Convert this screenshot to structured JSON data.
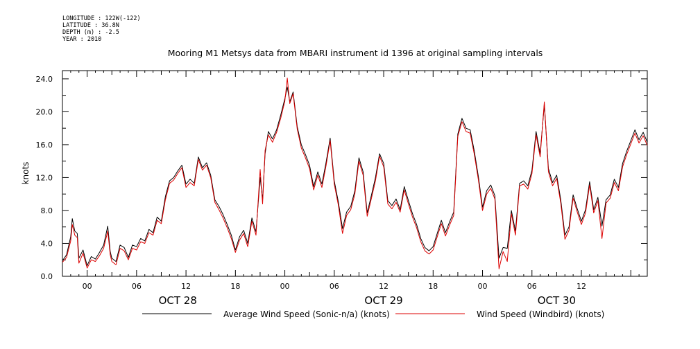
{
  "meta": {
    "longitude": "LONGITUDE : 122W(-122)",
    "latitude": "LATITUDE : 36.8N",
    "depth": "DEPTH (m) : -2.5",
    "year": "YEAR : 2010"
  },
  "chart_data": {
    "type": "line",
    "title": "Mooring M1 Metsys data from MBARI instrument id 1396 at original sampling intervals",
    "ylabel": "knots",
    "xlabel": "",
    "ylim": [
      0,
      25
    ],
    "yticks": [
      "0.0",
      "4.0",
      "8.0",
      "12.0",
      "16.0",
      "20.0",
      "24.0"
    ],
    "xlim_hours": [
      -3,
      68
    ],
    "xticks": [
      {
        "h": 0,
        "label": "00"
      },
      {
        "h": 6,
        "label": "06"
      },
      {
        "h": 12,
        "label": "12"
      },
      {
        "h": 18,
        "label": "18"
      },
      {
        "h": 24,
        "label": "00"
      },
      {
        "h": 30,
        "label": "06"
      },
      {
        "h": 36,
        "label": "12"
      },
      {
        "h": 42,
        "label": "18"
      },
      {
        "h": 48,
        "label": "00"
      },
      {
        "h": 54,
        "label": "06"
      },
      {
        "h": 60,
        "label": "12"
      }
    ],
    "day_labels": [
      {
        "h": 11,
        "label": "OCT 28"
      },
      {
        "h": 36,
        "label": "OCT 29"
      },
      {
        "h": 57,
        "label": "OCT 30"
      }
    ],
    "grid": false,
    "legend_position": "bottom",
    "series": [
      {
        "name": "Average Wind Speed (Sonic-n/a) (knots)",
        "color": "#000000",
        "points": [
          [
            -3,
            1.9
          ],
          [
            -2.5,
            2.6
          ],
          [
            -2,
            4.8
          ],
          [
            -1.8,
            7.0
          ],
          [
            -1.5,
            5.5
          ],
          [
            -1.2,
            5.2
          ],
          [
            -1,
            2.2
          ],
          [
            -0.5,
            3.2
          ],
          [
            0,
            1.3
          ],
          [
            0.5,
            2.4
          ],
          [
            1,
            2.1
          ],
          [
            1.5,
            2.9
          ],
          [
            2,
            3.8
          ],
          [
            2.5,
            6.1
          ],
          [
            2.8,
            3.0
          ],
          [
            3,
            2.2
          ],
          [
            3.5,
            1.8
          ],
          [
            4,
            3.8
          ],
          [
            4.5,
            3.5
          ],
          [
            5,
            2.3
          ],
          [
            5.5,
            3.8
          ],
          [
            6,
            3.6
          ],
          [
            6.5,
            4.6
          ],
          [
            7,
            4.3
          ],
          [
            7.5,
            5.7
          ],
          [
            8,
            5.3
          ],
          [
            8.5,
            7.2
          ],
          [
            9,
            6.7
          ],
          [
            9.5,
            9.7
          ],
          [
            10,
            11.6
          ],
          [
            10.5,
            12.0
          ],
          [
            11,
            12.8
          ],
          [
            11.5,
            13.5
          ],
          [
            12,
            11.2
          ],
          [
            12.5,
            11.8
          ],
          [
            13,
            11.3
          ],
          [
            13.5,
            14.5
          ],
          [
            14,
            13.2
          ],
          [
            14.5,
            13.8
          ],
          [
            15,
            12.3
          ],
          [
            15.5,
            9.3
          ],
          [
            16,
            8.5
          ],
          [
            16.5,
            7.5
          ],
          [
            17,
            6.3
          ],
          [
            17.5,
            5.0
          ],
          [
            18,
            3.2
          ],
          [
            18.5,
            4.8
          ],
          [
            19,
            5.6
          ],
          [
            19.5,
            4.0
          ],
          [
            20,
            7.1
          ],
          [
            20.5,
            5.4
          ],
          [
            21,
            12.0
          ],
          [
            21.3,
            9.3
          ],
          [
            21.6,
            14.9
          ],
          [
            22,
            17.6
          ],
          [
            22.5,
            16.7
          ],
          [
            23,
            17.8
          ],
          [
            23.5,
            19.6
          ],
          [
            24,
            21.6
          ],
          [
            24.3,
            23.0
          ],
          [
            24.6,
            21.2
          ],
          [
            25,
            22.4
          ],
          [
            25.5,
            18.2
          ],
          [
            26,
            16.0
          ],
          [
            26.5,
            14.8
          ],
          [
            27,
            13.5
          ],
          [
            27.5,
            10.9
          ],
          [
            28,
            12.7
          ],
          [
            28.5,
            11.2
          ],
          [
            29,
            13.8
          ],
          [
            29.5,
            16.8
          ],
          [
            30,
            11.6
          ],
          [
            30.5,
            9.0
          ],
          [
            31,
            5.8
          ],
          [
            31.5,
            7.8
          ],
          [
            32,
            8.5
          ],
          [
            32.5,
            10.4
          ],
          [
            33,
            14.4
          ],
          [
            33.5,
            12.7
          ],
          [
            34,
            7.7
          ],
          [
            34.5,
            9.8
          ],
          [
            35,
            12.0
          ],
          [
            35.5,
            14.9
          ],
          [
            36,
            13.7
          ],
          [
            36.5,
            9.2
          ],
          [
            37,
            8.6
          ],
          [
            37.5,
            9.4
          ],
          [
            38,
            8.1
          ],
          [
            38.5,
            10.9
          ],
          [
            39,
            9.2
          ],
          [
            39.5,
            7.6
          ],
          [
            40,
            6.3
          ],
          [
            40.5,
            4.6
          ],
          [
            41,
            3.5
          ],
          [
            41.5,
            3.1
          ],
          [
            42,
            3.6
          ],
          [
            42.5,
            5.2
          ],
          [
            43,
            6.8
          ],
          [
            43.5,
            5.3
          ],
          [
            44,
            6.6
          ],
          [
            44.5,
            7.8
          ],
          [
            45,
            17.3
          ],
          [
            45.5,
            19.2
          ],
          [
            46,
            18.0
          ],
          [
            46.5,
            17.8
          ],
          [
            47,
            15.2
          ],
          [
            47.5,
            12.1
          ],
          [
            48,
            8.4
          ],
          [
            48.5,
            10.4
          ],
          [
            49,
            11.1
          ],
          [
            49.5,
            9.8
          ],
          [
            50,
            2.2
          ],
          [
            50.5,
            3.5
          ],
          [
            51,
            3.4
          ],
          [
            51.5,
            8.0
          ],
          [
            52,
            5.5
          ],
          [
            52.5,
            11.3
          ],
          [
            53,
            11.6
          ],
          [
            53.5,
            11.0
          ],
          [
            54,
            12.9
          ],
          [
            54.5,
            17.6
          ],
          [
            55,
            14.9
          ],
          [
            55.5,
            20.9
          ],
          [
            56,
            13.1
          ],
          [
            56.5,
            11.4
          ],
          [
            57,
            12.3
          ],
          [
            57.5,
            9.3
          ],
          [
            58,
            5.0
          ],
          [
            58.5,
            6.0
          ],
          [
            59,
            9.9
          ],
          [
            59.5,
            8.2
          ],
          [
            60,
            6.7
          ],
          [
            60.5,
            8.1
          ],
          [
            61,
            11.5
          ],
          [
            61.5,
            8.1
          ],
          [
            62,
            9.6
          ],
          [
            62.5,
            6.1
          ],
          [
            63,
            9.3
          ],
          [
            63.5,
            9.9
          ],
          [
            64,
            11.8
          ],
          [
            64.5,
            10.8
          ],
          [
            65,
            13.7
          ],
          [
            65.5,
            15.2
          ],
          [
            66,
            16.5
          ],
          [
            66.5,
            17.8
          ],
          [
            67,
            16.6
          ],
          [
            67.5,
            17.5
          ],
          [
            68,
            16.3
          ]
        ]
      },
      {
        "name": "Wind Speed (Windbird) (knots)",
        "color": "#dd0000",
        "points": [
          [
            -3,
            1.7
          ],
          [
            -2.5,
            2.3
          ],
          [
            -2,
            4.3
          ],
          [
            -1.8,
            6.3
          ],
          [
            -1.5,
            5.0
          ],
          [
            -1.2,
            4.7
          ],
          [
            -1,
            1.6
          ],
          [
            -0.5,
            2.8
          ],
          [
            0,
            1.0
          ],
          [
            0.5,
            2.0
          ],
          [
            1,
            1.8
          ],
          [
            1.5,
            2.5
          ],
          [
            2,
            3.4
          ],
          [
            2.5,
            5.5
          ],
          [
            2.8,
            2.6
          ],
          [
            3,
            1.8
          ],
          [
            3.5,
            1.4
          ],
          [
            4,
            3.4
          ],
          [
            4.5,
            3.1
          ],
          [
            5,
            2.0
          ],
          [
            5.5,
            3.4
          ],
          [
            6,
            3.2
          ],
          [
            6.5,
            4.2
          ],
          [
            7,
            4.0
          ],
          [
            7.5,
            5.3
          ],
          [
            8,
            5.0
          ],
          [
            8.5,
            6.8
          ],
          [
            9,
            6.4
          ],
          [
            9.5,
            9.3
          ],
          [
            10,
            11.3
          ],
          [
            10.5,
            11.7
          ],
          [
            11,
            12.5
          ],
          [
            11.5,
            13.2
          ],
          [
            12,
            10.8
          ],
          [
            12.5,
            11.4
          ],
          [
            13,
            11.0
          ],
          [
            13.5,
            14.2
          ],
          [
            14,
            12.9
          ],
          [
            14.5,
            13.5
          ],
          [
            15,
            12.0
          ],
          [
            15.5,
            9.0
          ],
          [
            16,
            8.1
          ],
          [
            16.5,
            7.1
          ],
          [
            17,
            5.9
          ],
          [
            17.5,
            4.6
          ],
          [
            18,
            2.9
          ],
          [
            18.5,
            4.4
          ],
          [
            19,
            5.2
          ],
          [
            19.5,
            3.6
          ],
          [
            20,
            6.7
          ],
          [
            20.5,
            5.0
          ],
          [
            21,
            13.0
          ],
          [
            21.3,
            8.8
          ],
          [
            21.6,
            15.3
          ],
          [
            22,
            17.2
          ],
          [
            22.5,
            16.3
          ],
          [
            23,
            17.5
          ],
          [
            23.5,
            19.2
          ],
          [
            24,
            21.3
          ],
          [
            24.3,
            24.1
          ],
          [
            24.6,
            21.0
          ],
          [
            25,
            22.2
          ],
          [
            25.5,
            17.9
          ],
          [
            26,
            15.6
          ],
          [
            26.5,
            14.4
          ],
          [
            27,
            13.1
          ],
          [
            27.5,
            10.5
          ],
          [
            28,
            12.3
          ],
          [
            28.5,
            10.8
          ],
          [
            29,
            13.4
          ],
          [
            29.5,
            16.5
          ],
          [
            30,
            11.2
          ],
          [
            30.5,
            8.6
          ],
          [
            31,
            5.2
          ],
          [
            31.5,
            7.4
          ],
          [
            32,
            8.1
          ],
          [
            32.5,
            10.0
          ],
          [
            33,
            14.0
          ],
          [
            33.5,
            12.3
          ],
          [
            34,
            7.3
          ],
          [
            34.5,
            9.4
          ],
          [
            35,
            11.6
          ],
          [
            35.5,
            14.6
          ],
          [
            36,
            13.3
          ],
          [
            36.5,
            8.8
          ],
          [
            37,
            8.2
          ],
          [
            37.5,
            9.0
          ],
          [
            38,
            7.8
          ],
          [
            38.5,
            10.5
          ],
          [
            39,
            8.8
          ],
          [
            39.5,
            7.2
          ],
          [
            40,
            5.9
          ],
          [
            40.5,
            4.2
          ],
          [
            41,
            3.1
          ],
          [
            41.5,
            2.7
          ],
          [
            42,
            3.2
          ],
          [
            42.5,
            4.8
          ],
          [
            43,
            6.4
          ],
          [
            43.5,
            4.9
          ],
          [
            44,
            6.2
          ],
          [
            44.5,
            7.4
          ],
          [
            45,
            17.0
          ],
          [
            45.5,
            18.8
          ],
          [
            46,
            17.6
          ],
          [
            46.5,
            17.4
          ],
          [
            47,
            14.8
          ],
          [
            47.5,
            11.7
          ],
          [
            48,
            8.0
          ],
          [
            48.5,
            10.0
          ],
          [
            49,
            10.7
          ],
          [
            49.5,
            9.4
          ],
          [
            50,
            0.9
          ],
          [
            50.5,
            3.0
          ],
          [
            51,
            1.8
          ],
          [
            51.5,
            7.6
          ],
          [
            52,
            5.0
          ],
          [
            52.5,
            11.0
          ],
          [
            53,
            11.2
          ],
          [
            53.5,
            10.6
          ],
          [
            54,
            12.5
          ],
          [
            54.5,
            17.2
          ],
          [
            55,
            14.5
          ],
          [
            55.5,
            21.2
          ],
          [
            56,
            12.7
          ],
          [
            56.5,
            11.0
          ],
          [
            57,
            11.9
          ],
          [
            57.5,
            8.9
          ],
          [
            58,
            4.5
          ],
          [
            58.5,
            5.6
          ],
          [
            59,
            9.5
          ],
          [
            59.5,
            7.8
          ],
          [
            60,
            6.3
          ],
          [
            60.5,
            7.7
          ],
          [
            61,
            11.1
          ],
          [
            61.5,
            7.7
          ],
          [
            62,
            9.2
          ],
          [
            62.5,
            4.6
          ],
          [
            63,
            8.9
          ],
          [
            63.5,
            9.5
          ],
          [
            64,
            11.4
          ],
          [
            64.5,
            10.4
          ],
          [
            65,
            13.3
          ],
          [
            65.5,
            14.8
          ],
          [
            66,
            16.1
          ],
          [
            66.5,
            17.4
          ],
          [
            67,
            16.2
          ],
          [
            67.5,
            17.1
          ],
          [
            68,
            15.9
          ]
        ]
      }
    ]
  }
}
